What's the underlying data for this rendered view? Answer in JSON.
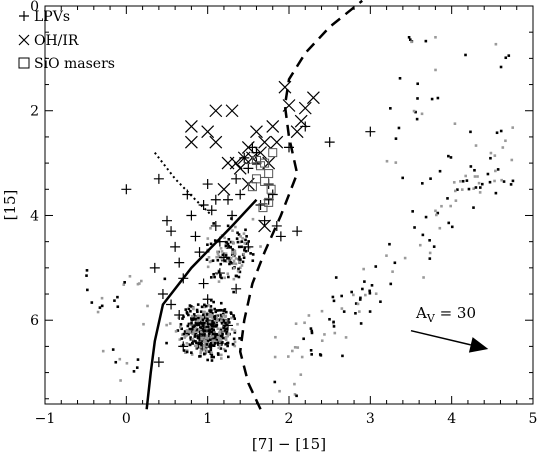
{
  "chart_data": {
    "type": "scatter",
    "xlabel": "[7] − [15]",
    "ylabel": "[15]",
    "xlim": [
      -1,
      5
    ],
    "ylim": [
      7.6,
      0
    ],
    "y_inverted": true,
    "x_ticks": [
      -1,
      0,
      1,
      2,
      3,
      4,
      5
    ],
    "y_ticks": [
      0,
      2,
      4,
      6
    ],
    "annotations": {
      "extinction_label_main": "A",
      "extinction_label_sub": "V",
      "extinction_label_rest": " = 30",
      "extinction_arrow": {
        "from": [
          3.5,
          6.2
        ],
        "to": [
          4.45,
          6.55
        ]
      }
    },
    "legend": [
      {
        "symbol": "plus",
        "label": "LPVs"
      },
      {
        "symbol": "cross",
        "label": "OH/IR"
      },
      {
        "symbol": "square",
        "label": "SiO masers"
      }
    ],
    "series": [
      {
        "name": "LPVs",
        "marker": "plus",
        "points": [
          [
            0.0,
            3.5
          ],
          [
            0.4,
            3.3
          ],
          [
            0.5,
            4.1
          ],
          [
            0.55,
            4.3
          ],
          [
            0.6,
            4.6
          ],
          [
            0.65,
            4.9
          ],
          [
            0.7,
            5.2
          ],
          [
            0.75,
            3.6
          ],
          [
            0.8,
            4.0
          ],
          [
            0.85,
            4.4
          ],
          [
            0.9,
            4.7
          ],
          [
            0.95,
            5.3
          ],
          [
            1.0,
            3.4
          ],
          [
            1.05,
            3.9
          ],
          [
            1.1,
            4.2
          ],
          [
            1.15,
            4.5
          ],
          [
            1.2,
            4.8
          ],
          [
            1.25,
            3.7
          ],
          [
            1.3,
            4.0
          ],
          [
            1.35,
            3.3
          ],
          [
            1.4,
            3.6
          ],
          [
            1.45,
            2.9
          ],
          [
            1.5,
            3.1
          ],
          [
            1.55,
            2.7
          ],
          [
            1.6,
            3.0
          ],
          [
            1.65,
            3.8
          ],
          [
            1.7,
            4.1
          ],
          [
            1.75,
            3.7
          ],
          [
            1.8,
            3.6
          ],
          [
            1.85,
            4.2
          ],
          [
            1.9,
            4.4
          ],
          [
            2.0,
            2.7
          ],
          [
            2.1,
            4.3
          ],
          [
            2.2,
            2.3
          ],
          [
            2.5,
            2.6
          ],
          [
            3.0,
            2.4
          ],
          [
            0.35,
            5.0
          ],
          [
            0.45,
            5.5
          ],
          [
            0.55,
            5.7
          ],
          [
            0.65,
            5.9
          ],
          [
            1.0,
            5.6
          ],
          [
            1.15,
            5.1
          ],
          [
            1.35,
            5.4
          ],
          [
            1.5,
            4.6
          ],
          [
            0.9,
            6.3
          ],
          [
            0.7,
            6.5
          ],
          [
            1.25,
            6.1
          ],
          [
            0.4,
            6.8
          ],
          [
            1.1,
            3.7
          ],
          [
            1.6,
            2.8
          ],
          [
            1.75,
            3.4
          ],
          [
            0.95,
            3.8
          ]
        ]
      },
      {
        "name": "OH/IR",
        "marker": "cross",
        "points": [
          [
            0.8,
            2.3
          ],
          [
            0.8,
            2.6
          ],
          [
            1.0,
            2.4
          ],
          [
            1.1,
            2.0
          ],
          [
            1.1,
            2.6
          ],
          [
            1.3,
            2.0
          ],
          [
            1.35,
            3.0
          ],
          [
            1.45,
            2.9
          ],
          [
            1.5,
            2.7
          ],
          [
            1.55,
            2.9
          ],
          [
            1.6,
            2.4
          ],
          [
            1.65,
            2.8
          ],
          [
            1.7,
            2.6
          ],
          [
            1.75,
            3.0
          ],
          [
            1.85,
            2.6
          ],
          [
            1.95,
            1.55
          ],
          [
            2.0,
            1.9
          ],
          [
            2.1,
            2.4
          ],
          [
            2.2,
            1.95
          ],
          [
            2.3,
            1.75
          ],
          [
            2.15,
            2.2
          ],
          [
            1.2,
            3.5
          ],
          [
            1.5,
            3.4
          ],
          [
            1.4,
            3.1
          ],
          [
            1.25,
            3.0
          ],
          [
            1.8,
            2.3
          ],
          [
            1.7,
            4.2
          ]
        ]
      },
      {
        "name": "SiO masers",
        "marker": "square",
        "points": [
          [
            1.6,
            2.95
          ],
          [
            1.65,
            3.05
          ],
          [
            1.7,
            3.0
          ],
          [
            1.75,
            3.2
          ],
          [
            1.8,
            2.8
          ],
          [
            1.6,
            3.3
          ],
          [
            1.7,
            3.35
          ],
          [
            1.78,
            3.5
          ],
          [
            1.75,
            3.75
          ],
          [
            1.68,
            3.85
          ],
          [
            1.55,
            3.45
          ]
        ]
      }
    ],
    "curves": [
      {
        "style": "solid",
        "points": [
          [
            0.25,
            7.7
          ],
          [
            0.3,
            7.0
          ],
          [
            0.35,
            6.4
          ],
          [
            0.45,
            5.7
          ],
          [
            0.8,
            5.0
          ],
          [
            1.3,
            4.2
          ],
          [
            1.6,
            3.7
          ]
        ]
      },
      {
        "style": "dashed",
        "points": [
          [
            1.65,
            7.7
          ],
          [
            1.5,
            7.2
          ],
          [
            1.4,
            6.6
          ],
          [
            1.45,
            6.0
          ],
          [
            1.55,
            5.3
          ],
          [
            1.7,
            4.7
          ],
          [
            1.9,
            4.0
          ],
          [
            2.1,
            3.2
          ],
          [
            2.0,
            2.5
          ],
          [
            1.95,
            1.9
          ],
          [
            2.0,
            1.4
          ],
          [
            2.2,
            0.9
          ],
          [
            2.5,
            0.4
          ],
          [
            2.9,
            -0.1
          ]
        ]
      },
      {
        "style": "dotted",
        "points": [
          [
            0.35,
            2.8
          ],
          [
            0.6,
            3.3
          ],
          [
            0.85,
            3.7
          ],
          [
            1.05,
            4.0
          ]
        ]
      }
    ]
  }
}
